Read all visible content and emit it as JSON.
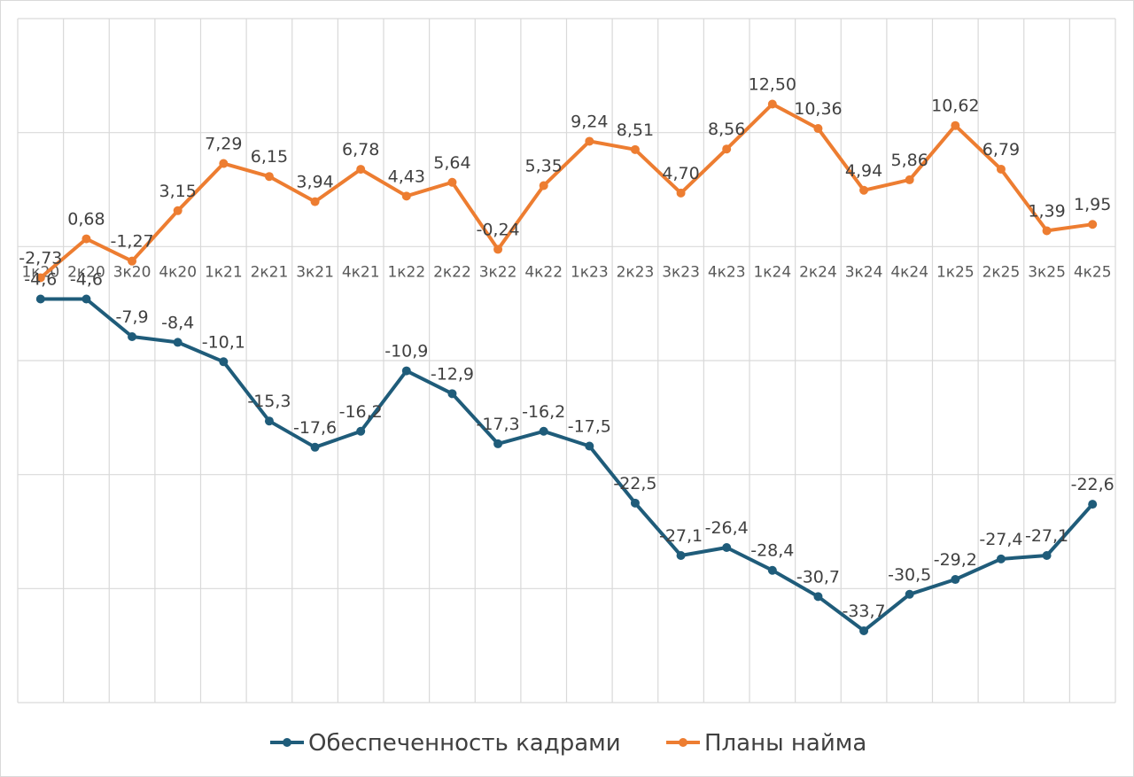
{
  "chart_data": {
    "type": "line",
    "title": "",
    "xlabel": "",
    "ylabel": "",
    "categories": [
      "1к20",
      "2к20",
      "3к20",
      "4к20",
      "1к21",
      "2к21",
      "3к21",
      "4к21",
      "1к22",
      "2к22",
      "3к22",
      "4к22",
      "1к23",
      "2к23",
      "3к23",
      "4к23",
      "1к24",
      "2к24",
      "3к24",
      "4к24",
      "1к25",
      "2к25",
      "3к25",
      "4к25"
    ],
    "ylim": [
      -40,
      20
    ],
    "grid": true,
    "legend_position": "bottom",
    "series": [
      {
        "name": "Обеспеченность кадрами",
        "color": "#1f5c7a",
        "values": [
          -4.6,
          -4.6,
          -7.9,
          -8.4,
          -10.1,
          -15.3,
          -17.6,
          -16.2,
          -10.9,
          -12.9,
          -17.3,
          -16.2,
          -17.5,
          -22.5,
          -27.1,
          -26.4,
          -28.4,
          -30.7,
          -33.7,
          -30.5,
          -29.2,
          -27.4,
          -27.1,
          -22.6
        ],
        "labels": [
          "-4,6",
          "-4,6",
          "-7,9",
          "-8,4",
          "-10,1",
          "-15,3",
          "-17,6",
          "-16,2",
          "-10,9",
          "-12,9",
          "-17,3",
          "-16,2",
          "-17,5",
          "-22,5",
          "-27,1",
          "-26,4",
          "-28,4",
          "-30,7",
          "-33,7",
          "-30,5",
          "-29,2",
          "-27,4",
          "-27,1",
          "-22,6"
        ]
      },
      {
        "name": "Планы найма",
        "color": "#ed7d31",
        "values": [
          -2.73,
          0.68,
          -1.27,
          3.15,
          7.29,
          6.15,
          3.94,
          6.78,
          4.43,
          5.64,
          -0.24,
          5.35,
          9.24,
          8.51,
          4.7,
          8.56,
          12.5,
          10.36,
          4.94,
          5.86,
          10.62,
          6.79,
          1.39,
          1.95
        ],
        "labels": [
          "-2,73",
          "0,68",
          "-1,27",
          "3,15",
          "7,29",
          "6,15",
          "3,94",
          "6,78",
          "4,43",
          "5,64",
          "-0,24",
          "5,35",
          "9,24",
          "8,51",
          "4,70",
          "8,56",
          "12,50",
          "10,36",
          "4,94",
          "5,86",
          "10,62",
          "6,79",
          "1,39",
          "1,95"
        ]
      }
    ]
  }
}
